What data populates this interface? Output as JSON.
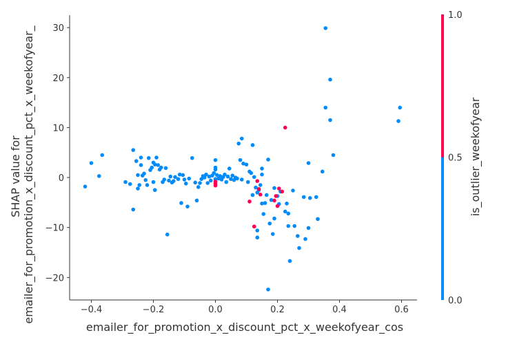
{
  "chart_data": {
    "type": "scatter",
    "xlabel": "emailer_for_promotion_x_discount_pct_x_weekofyear_cos",
    "ylabel": "SHAP value for\nemailer_for_promotion_x_discount_pct_x_weekofyear_",
    "xlim": [
      -0.47,
      0.65
    ],
    "ylim": [
      -24.5,
      32.5
    ],
    "xticks": [
      -0.4,
      -0.2,
      0.0,
      0.2,
      0.4,
      0.6
    ],
    "xtick_labels": [
      "−0.4",
      "−0.2",
      "0.0",
      "0.2",
      "0.4",
      "0.6"
    ],
    "yticks": [
      -20,
      -10,
      0,
      10,
      20,
      30
    ],
    "ytick_labels": [
      "−20",
      "−10",
      "0",
      "10",
      "20",
      "30"
    ],
    "grid": false,
    "colorbar": {
      "label": "is_outlier_weekofyear",
      "ticks": [
        0.0,
        0.5,
        1.0
      ],
      "tick_labels": [
        "0.0",
        "0.5",
        "1.0"
      ],
      "low_color": "#008bfb",
      "high_color": "#ff0051"
    },
    "series": [
      {
        "color": "#008bfb",
        "values_note": "is_outlier_weekofyear = 0",
        "points": [
          [
            -0.42,
            -1.8
          ],
          [
            -0.4,
            2.9
          ],
          [
            -0.375,
            0.3
          ],
          [
            -0.365,
            4.5
          ],
          [
            -0.29,
            -0.9
          ],
          [
            -0.275,
            -1.3
          ],
          [
            -0.265,
            5.5
          ],
          [
            -0.265,
            -6.4
          ],
          [
            -0.255,
            3.3
          ],
          [
            -0.25,
            0.5
          ],
          [
            -0.25,
            -2.2
          ],
          [
            -0.24,
            4.0
          ],
          [
            -0.245,
            -1.5
          ],
          [
            -0.235,
            0.4
          ],
          [
            -0.24,
            2.5
          ],
          [
            -0.23,
            0.8
          ],
          [
            -0.225,
            -0.5
          ],
          [
            -0.22,
            -1.5
          ],
          [
            -0.215,
            3.9
          ],
          [
            -0.21,
            1.5
          ],
          [
            -0.205,
            2.0
          ],
          [
            -0.2,
            -0.9
          ],
          [
            -0.2,
            3.0
          ],
          [
            -0.195,
            2.6
          ],
          [
            -0.195,
            -2.5
          ],
          [
            -0.19,
            4.0
          ],
          [
            -0.185,
            2.5
          ],
          [
            -0.18,
            1.6
          ],
          [
            -0.175,
            2.0
          ],
          [
            -0.17,
            -0.9
          ],
          [
            -0.165,
            -0.4
          ],
          [
            -0.16,
            1.9
          ],
          [
            -0.155,
            -11.4
          ],
          [
            -0.15,
            -0.6
          ],
          [
            -0.145,
            0.2
          ],
          [
            -0.14,
            -1.0
          ],
          [
            -0.135,
            -0.7
          ],
          [
            -0.13,
            0.1
          ],
          [
            -0.12,
            -0.3
          ],
          [
            -0.115,
            0.6
          ],
          [
            -0.11,
            -5.1
          ],
          [
            -0.105,
            0.5
          ],
          [
            -0.1,
            -0.4
          ],
          [
            -0.095,
            -1.2
          ],
          [
            -0.09,
            -5.8
          ],
          [
            -0.085,
            -0.2
          ],
          [
            -0.075,
            3.9
          ],
          [
            -0.065,
            -1.0
          ],
          [
            -0.06,
            -4.6
          ],
          [
            -0.055,
            -1.9
          ],
          [
            -0.05,
            -1.1
          ],
          [
            -0.045,
            -0.3
          ],
          [
            -0.04,
            0.3
          ],
          [
            -0.035,
            0.0
          ],
          [
            -0.03,
            0.6
          ],
          [
            -0.025,
            -1.1
          ],
          [
            -0.02,
            0.2
          ],
          [
            -0.015,
            -0.6
          ],
          [
            -0.01,
            0.4
          ],
          [
            -0.005,
            0.9
          ],
          [
            0.0,
            1.6
          ],
          [
            0.0,
            2.0
          ],
          [
            0.0,
            3.5
          ],
          [
            0.0,
            -0.3
          ],
          [
            0.005,
            0.5
          ],
          [
            0.01,
            -0.2
          ],
          [
            0.015,
            0.3
          ],
          [
            0.02,
            -0.4
          ],
          [
            0.025,
            0.1
          ],
          [
            0.03,
            0.6
          ],
          [
            0.035,
            -0.9
          ],
          [
            0.04,
            0.2
          ],
          [
            0.045,
            1.8
          ],
          [
            0.05,
            -0.3
          ],
          [
            0.055,
            0.4
          ],
          [
            0.06,
            -0.5
          ],
          [
            0.065,
            0.0
          ],
          [
            0.07,
            -0.2
          ],
          [
            0.075,
            6.8
          ],
          [
            0.08,
            3.5
          ],
          [
            0.085,
            7.8
          ],
          [
            0.085,
            -0.4
          ],
          [
            0.09,
            2.8
          ],
          [
            0.1,
            2.6
          ],
          [
            0.105,
            -0.9
          ],
          [
            0.11,
            1.2
          ],
          [
            0.115,
            0.9
          ],
          [
            0.12,
            6.5
          ],
          [
            0.12,
            -3.5
          ],
          [
            0.125,
            0.1
          ],
          [
            0.13,
            -2.0
          ],
          [
            0.135,
            -12.0
          ],
          [
            0.135,
            -10.6
          ],
          [
            0.135,
            -3.0
          ],
          [
            0.14,
            -2.5
          ],
          [
            0.145,
            -1.5
          ],
          [
            0.15,
            1.8
          ],
          [
            0.15,
            0.6
          ],
          [
            0.15,
            -5.2
          ],
          [
            0.155,
            -7.3
          ],
          [
            0.16,
            -5.1
          ],
          [
            0.165,
            -3.5
          ],
          [
            0.17,
            -22.4
          ],
          [
            0.17,
            3.6
          ],
          [
            0.175,
            -9.2
          ],
          [
            0.18,
            -4.5
          ],
          [
            0.185,
            -11.3
          ],
          [
            0.19,
            -8.2
          ],
          [
            0.19,
            -2.1
          ],
          [
            0.2,
            -3.7
          ],
          [
            0.205,
            -5.3
          ],
          [
            0.21,
            -2.8
          ],
          [
            0.225,
            -6.8
          ],
          [
            0.23,
            -5.2
          ],
          [
            0.235,
            -9.7
          ],
          [
            0.235,
            -7.2
          ],
          [
            0.24,
            -16.7
          ],
          [
            0.25,
            -2.6
          ],
          [
            0.255,
            -9.7
          ],
          [
            0.265,
            -11.7
          ],
          [
            0.27,
            -14.1
          ],
          [
            0.285,
            -3.9
          ],
          [
            0.29,
            -12.3
          ],
          [
            0.3,
            2.9
          ],
          [
            0.3,
            -10.1
          ],
          [
            0.305,
            -4.1
          ],
          [
            0.325,
            -3.9
          ],
          [
            0.33,
            -8.3
          ],
          [
            0.345,
            1.2
          ],
          [
            0.355,
            29.9
          ],
          [
            0.355,
            14.0
          ],
          [
            0.37,
            19.6
          ],
          [
            0.37,
            11.5
          ],
          [
            0.38,
            4.5
          ],
          [
            0.59,
            11.3
          ],
          [
            0.595,
            14.0
          ]
        ]
      },
      {
        "color": "#ff0051",
        "values_note": "is_outlier_weekofyear = 1",
        "points": [
          [
            0.0,
            -1.2
          ],
          [
            0.0,
            -0.8
          ],
          [
            0.0,
            -1.6
          ],
          [
            0.11,
            -4.8
          ],
          [
            0.125,
            -9.8
          ],
          [
            0.135,
            -0.7
          ],
          [
            0.14,
            -2.3
          ],
          [
            0.145,
            -3.4
          ],
          [
            0.19,
            -4.6
          ],
          [
            0.195,
            -3.7
          ],
          [
            0.2,
            -5.7
          ],
          [
            0.205,
            -2.2
          ],
          [
            0.215,
            -2.8
          ],
          [
            0.225,
            10.0
          ]
        ]
      }
    ]
  }
}
